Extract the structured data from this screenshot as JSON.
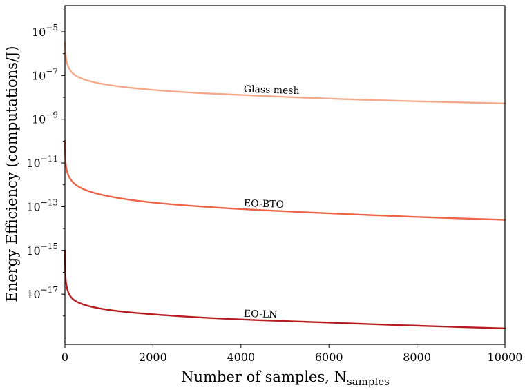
{
  "chart_data": {
    "type": "line",
    "xlabel": "Number of samples, N",
    "xlabel_subscript": "samples",
    "ylabel": "Energy Efficiency (computations/J)",
    "xlim": [
      0,
      10000
    ],
    "ylim_log10": [
      -19.3,
      -3.8
    ],
    "log_y": true,
    "grid": false,
    "x_ticks": [
      0,
      2000,
      4000,
      6000,
      8000,
      10000
    ],
    "x_tick_labels": [
      "0",
      "2000",
      "4000",
      "6000",
      "8000",
      "10000"
    ],
    "y_ticks_log10": [
      -5,
      -7,
      -9,
      -11,
      -13,
      -15,
      -17
    ],
    "y_tick_base": "10",
    "y_tick_exponents": [
      "−5",
      "−7",
      "−9",
      "−11",
      "−13",
      "−15",
      "−17"
    ],
    "series": [
      {
        "name": "Glass mesh",
        "color": "#f4a98b",
        "label_x": 4000,
        "x": [
          1,
          10,
          50,
          100,
          200,
          500,
          1000,
          2000,
          3000,
          4000,
          5000,
          6000,
          7000,
          8000,
          9000,
          10000
        ],
        "y": [
          3.2e-06,
          1.5e-06,
          3.6e-07,
          2e-07,
          1.15e-07,
          6e-08,
          3.7e-08,
          2.2e-08,
          1.6e-08,
          1.3e-08,
          1.05e-08,
          8.8e-09,
          7.5e-09,
          6.6e-09,
          5.9e-09,
          5.3e-09
        ]
      },
      {
        "name": "EO-BTO",
        "color": "#ee6446",
        "label_x": 4000,
        "x": [
          1,
          10,
          50,
          100,
          200,
          500,
          1000,
          2000,
          3000,
          4000,
          5000,
          6000,
          7000,
          8000,
          9000,
          10000
        ],
        "y": [
          1e-10,
          1.5e-11,
          4e-12,
          2.2e-12,
          1.2e-12,
          5.5e-13,
          3e-13,
          1.55e-13,
          1.05e-13,
          7.8e-14,
          6.2e-14,
          5e-14,
          4.1e-14,
          3.4e-14,
          2.9e-14,
          2.5e-14
        ]
      },
      {
        "name": "EO-LN",
        "color": "#b71c20",
        "label_x": 4000,
        "x": [
          1,
          10,
          50,
          100,
          200,
          500,
          1000,
          2000,
          3000,
          4000,
          5000,
          6000,
          7000,
          8000,
          9000,
          10000
        ],
        "y": [
          1e-15,
          8e-17,
          1.8e-17,
          9.5e-18,
          5.5e-18,
          3e-18,
          1.9e-18,
          1.2e-18,
          8.8e-19,
          7e-19,
          5.9e-19,
          5e-19,
          4.2e-19,
          3.6e-19,
          3.1e-19,
          2.7e-19
        ]
      }
    ]
  }
}
